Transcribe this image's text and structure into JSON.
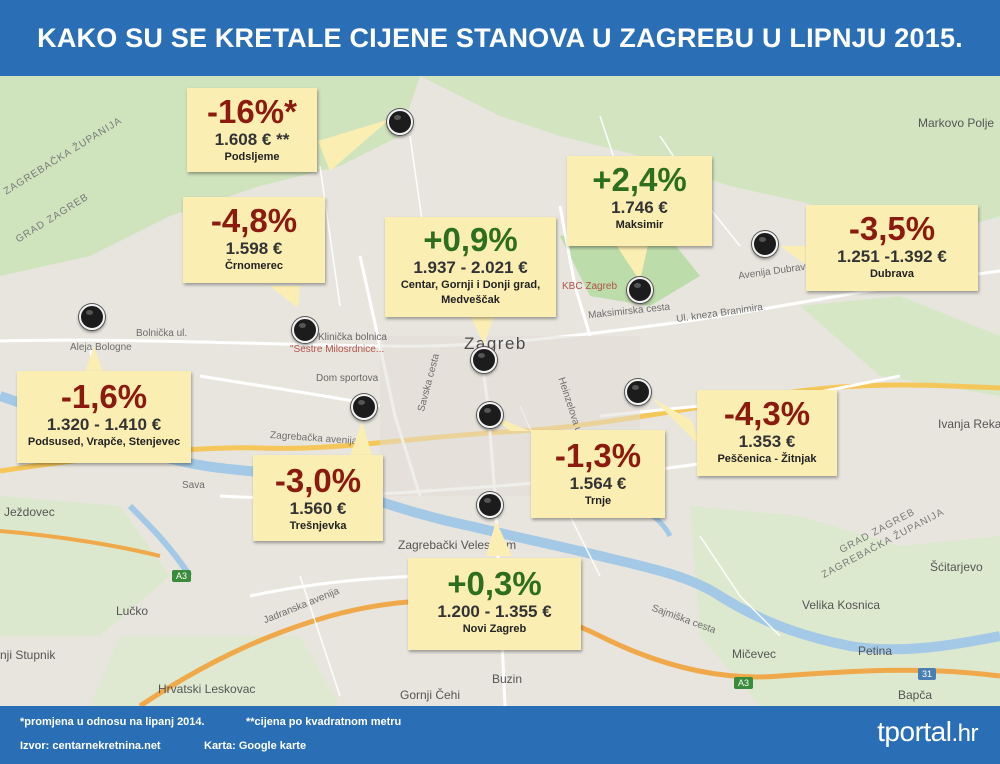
{
  "title": "KAKO SU SE KRETALE CIJENE STANOVA U ZAGREBU U LIPNJU 2015.",
  "map_labels": {
    "zagreb": "Zagreb",
    "markovo_polje": "Markovo Polje",
    "zagrebacka_zupanija_nw": "ZAGREBAČKA ŽUPANIJA",
    "grad_zagreb_nw": "GRAD ZAGREB",
    "grad_zagreb_se": "GRAD ZAGREB",
    "zagrebacka_zupanija_se": "ZAGREBAČKA ŽUPANIJA",
    "ivanja_reka": "Ivanja Reka",
    "scitarjevo": "Šćitarjevo",
    "velika_kosnica": "Velika Kosnica",
    "micevec": "Mičevec",
    "petina": "Petina",
    "bapca": "Bapča",
    "buzin": "Buzin",
    "gornji_cehi": "Gornji Čehi",
    "hrvatski_leskovac": "Hrvatski Leskovac",
    "lucko": "Lučko",
    "jezdovec": "Ježdovec",
    "stupnik": "nji Stupnik",
    "zagrebacki_velesajam": "Zagrebački Velesajam",
    "dom_sportova": "Dom sportova",
    "klinicka_bolnica": "Klinička bolnica",
    "sestre_milosrdnice": "\"Sestre Milosrdnice...",
    "kbc_zagreb": "KBC Zagreb",
    "aleja_bologne": "Aleja Bologne",
    "bolnicka": "Bolnička ul.",
    "zagrebacka_avenija": "Zagrebačka avenija",
    "jadranska_avenija": "Jadranska avenija",
    "maksimirska": "Maksimirska cesta",
    "kneza_branimira": "Ul. kneza Branimira",
    "avenija_dubrava": "Avenija Dubrava",
    "sava": "Sava",
    "sajmiska": "Sajmiška cesta",
    "heinzelova": "Heinzelova ul.",
    "savska": "Savska cesta",
    "a3": "A3",
    "r31": "31"
  },
  "districts": [
    {
      "pct": "-16%*",
      "price": "1.608 € **",
      "area": "Podsljeme",
      "trend": "neg"
    },
    {
      "pct": "-4,8%",
      "price": "1.598 €",
      "area": "Črnomerec",
      "trend": "neg"
    },
    {
      "pct": "+0,9%",
      "price": "1.937 - 2.021 €",
      "area": "Centar, Gornji i Donji grad, Medveščak",
      "trend": "pos"
    },
    {
      "pct": "+2,4%",
      "price": "1.746 €",
      "area": "Maksimir",
      "trend": "pos"
    },
    {
      "pct": "-3,5%",
      "price": "1.251  -1.392 €",
      "area": "Dubrava",
      "trend": "neg"
    },
    {
      "pct": "-1,6%",
      "price": "1.320 - 1.410 €",
      "area": "Podsused, Vrapče, Stenjevec",
      "trend": "neg"
    },
    {
      "pct": "-3,0%",
      "price": "1.560 €",
      "area": "Trešnjevka",
      "trend": "neg"
    },
    {
      "pct": "-1,3%",
      "price": "1.564 €",
      "area": "Trnje",
      "trend": "neg"
    },
    {
      "pct": "-4,3%",
      "price": "1.353 €",
      "area": "Peščenica - Žitnjak",
      "trend": "neg"
    },
    {
      "pct": "+0,3%",
      "price": "1.200 - 1.355 €",
      "area": "Novi Zagreb",
      "trend": "pos"
    }
  ],
  "footer": {
    "note1": "*promjena u odnosu na lipanj 2014.",
    "note2": "**cijena po kvadratnom metru",
    "source": "Izvor: centarnekretnina.net",
    "map_credit": "Karta: Google karte",
    "brand_main": "tportal",
    "brand_suffix": ".hr"
  },
  "colors": {
    "header_bg": "#2a6fb5",
    "box_bg": "#fbeeb3",
    "negative": "#8b1b0e",
    "positive": "#2d6e1f"
  },
  "icons": {
    "pin": "map-pin-icon"
  }
}
